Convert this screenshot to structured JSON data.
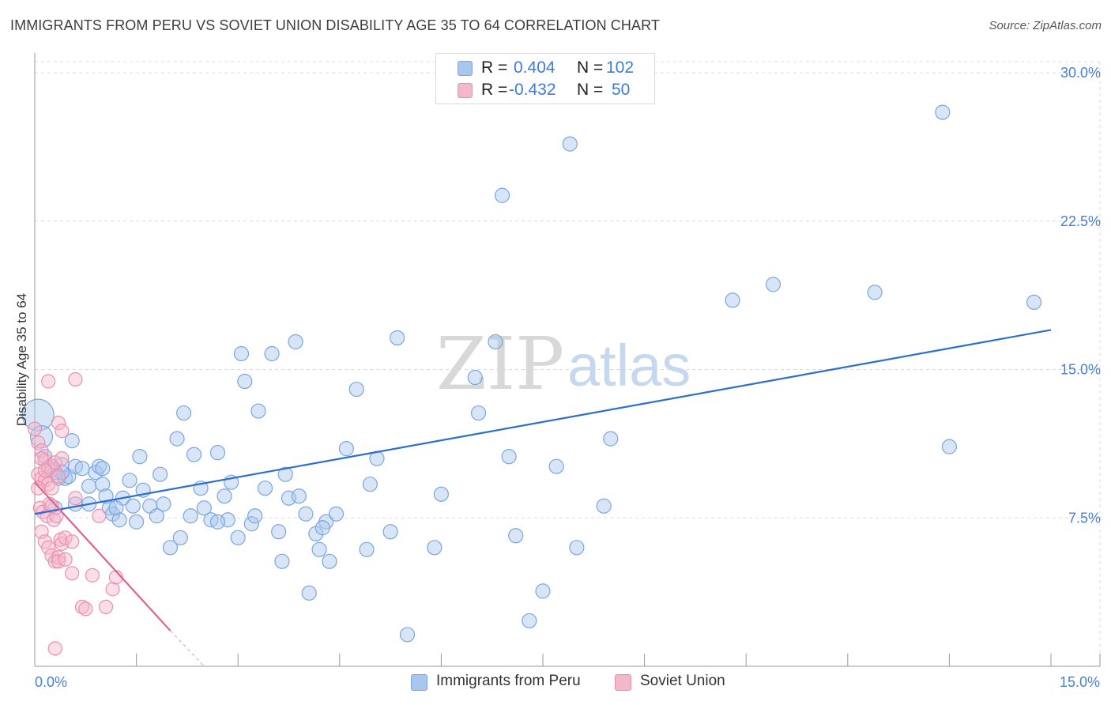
{
  "header": {
    "title": "IMMIGRANTS FROM PERU VS SOVIET UNION DISABILITY AGE 35 TO 64 CORRELATION CHART",
    "source": "Source: ZipAtlas.com"
  },
  "legend": {
    "rows": [
      {
        "r_label": "R =",
        "r_value": "0.404",
        "n_label": "N =",
        "n_value": "102"
      },
      {
        "r_label": "R =",
        "r_value": "-0.432",
        "n_label": "N =",
        "n_value": "50"
      }
    ]
  },
  "bottom_legend": {
    "series_a": "Immigrants from Peru",
    "series_b": "Soviet Union"
  },
  "watermark": {
    "zip": "ZIP",
    "atlas": "atlas"
  },
  "colors": {
    "peru_fill": "#a9c6ee",
    "peru_stroke": "#7aa6e0",
    "peru_line": "#2a6fd0",
    "soviet_fill": "#f5b8cb",
    "soviet_stroke": "#ec8fac",
    "soviet_line": "#e0608f",
    "tick_text": "#4a7fd0"
  },
  "chart_data": {
    "type": "scatter",
    "title": "IMMIGRANTS FROM PERU VS SOVIET UNION DISABILITY AGE 35 TO 64 CORRELATION CHART",
    "xlabel": "",
    "ylabel": "Disability Age 35 to 64",
    "xlim": [
      0,
      15
    ],
    "ylim": [
      0,
      31
    ],
    "x_tick_labels": [
      {
        "value": 0,
        "label": "0.0%"
      },
      {
        "value": 15,
        "label": "15.0%"
      }
    ],
    "y_tick_labels": [
      {
        "value": 7.5,
        "label": "7.5%"
      },
      {
        "value": 15,
        "label": "15.0%"
      },
      {
        "value": 22.5,
        "label": "22.5%"
      },
      {
        "value": 30,
        "label": "30.0%"
      }
    ],
    "series": [
      {
        "name": "Immigrants from Peru",
        "r": 0.404,
        "n": 102,
        "trend": {
          "x": [
            0,
            15
          ],
          "y": [
            7.7,
            17.0
          ]
        },
        "points": [
          [
            0.05,
            12.7
          ],
          [
            0.1,
            11.6
          ],
          [
            0.15,
            10.6
          ],
          [
            0.2,
            10.0
          ],
          [
            0.25,
            10.1
          ],
          [
            0.3,
            9.8
          ],
          [
            0.35,
            9.5
          ],
          [
            0.4,
            10.2
          ],
          [
            0.45,
            9.5
          ],
          [
            0.5,
            9.6
          ],
          [
            0.55,
            11.4
          ],
          [
            0.6,
            10.1
          ],
          [
            0.7,
            10.0
          ],
          [
            0.8,
            9.1
          ],
          [
            0.9,
            9.8
          ],
          [
            0.95,
            10.1
          ],
          [
            1.0,
            9.2
          ],
          [
            1.1,
            8.0
          ],
          [
            1.15,
            7.7
          ],
          [
            1.25,
            7.4
          ],
          [
            1.3,
            8.5
          ],
          [
            1.4,
            9.4
          ],
          [
            1.5,
            7.3
          ],
          [
            1.55,
            10.6
          ],
          [
            1.6,
            8.9
          ],
          [
            1.7,
            8.1
          ],
          [
            1.8,
            7.6
          ],
          [
            1.85,
            9.7
          ],
          [
            1.9,
            8.2
          ],
          [
            2.0,
            6.0
          ],
          [
            2.1,
            11.5
          ],
          [
            2.2,
            12.8
          ],
          [
            2.3,
            7.6
          ],
          [
            2.35,
            10.7
          ],
          [
            2.45,
            9.0
          ],
          [
            2.5,
            8.0
          ],
          [
            2.6,
            7.4
          ],
          [
            2.7,
            10.8
          ],
          [
            2.8,
            8.6
          ],
          [
            2.85,
            7.4
          ],
          [
            3.0,
            6.5
          ],
          [
            3.05,
            15.8
          ],
          [
            3.1,
            14.4
          ],
          [
            3.2,
            7.2
          ],
          [
            3.3,
            12.9
          ],
          [
            3.4,
            9.0
          ],
          [
            3.5,
            15.8
          ],
          [
            3.6,
            6.8
          ],
          [
            3.65,
            5.3
          ],
          [
            3.75,
            8.5
          ],
          [
            3.85,
            16.4
          ],
          [
            3.9,
            8.6
          ],
          [
            4.0,
            7.7
          ],
          [
            4.05,
            3.7
          ],
          [
            4.15,
            6.7
          ],
          [
            4.2,
            5.9
          ],
          [
            4.3,
            7.3
          ],
          [
            4.35,
            5.3
          ],
          [
            4.45,
            7.7
          ],
          [
            4.6,
            11.0
          ],
          [
            4.75,
            14.0
          ],
          [
            4.9,
            5.9
          ],
          [
            4.95,
            9.2
          ],
          [
            5.05,
            10.5
          ],
          [
            5.25,
            6.8
          ],
          [
            5.35,
            16.6
          ],
          [
            5.5,
            1.6
          ],
          [
            5.9,
            6.0
          ],
          [
            6.0,
            8.7
          ],
          [
            6.5,
            14.6
          ],
          [
            6.55,
            12.8
          ],
          [
            6.8,
            16.4
          ],
          [
            6.9,
            23.8
          ],
          [
            7.0,
            10.6
          ],
          [
            7.1,
            6.6
          ],
          [
            7.3,
            2.3
          ],
          [
            7.5,
            3.8
          ],
          [
            7.7,
            10.1
          ],
          [
            7.9,
            26.4
          ],
          [
            8.0,
            6.0
          ],
          [
            8.4,
            8.1
          ],
          [
            8.5,
            11.5
          ],
          [
            10.3,
            18.5
          ],
          [
            10.9,
            19.3
          ],
          [
            12.4,
            18.9
          ],
          [
            13.4,
            28.0
          ],
          [
            13.5,
            11.1
          ],
          [
            14.75,
            18.4
          ],
          [
            0.6,
            8.2
          ],
          [
            1.2,
            8.0
          ],
          [
            2.7,
            7.3
          ],
          [
            3.7,
            9.7
          ],
          [
            1.0,
            10.0
          ],
          [
            0.8,
            8.2
          ],
          [
            1.05,
            8.6
          ],
          [
            2.9,
            9.3
          ],
          [
            4.25,
            7.0
          ],
          [
            0.4,
            9.8
          ],
          [
            1.45,
            8.1
          ],
          [
            2.15,
            6.5
          ],
          [
            3.25,
            7.6
          ],
          [
            0.3,
            8.0
          ]
        ]
      },
      {
        "name": "Soviet Union",
        "r": -0.432,
        "n": 50,
        "trend": {
          "x": [
            0,
            2.0
          ],
          "y": [
            9.3,
            1.8
          ]
        },
        "trend_extension": {
          "x": [
            2.0,
            2.5
          ],
          "y": [
            1.8,
            0.0
          ]
        },
        "points": [
          [
            0.0,
            12.0
          ],
          [
            0.05,
            11.3
          ],
          [
            0.1,
            10.9
          ],
          [
            0.15,
            10.4
          ],
          [
            0.2,
            10.1
          ],
          [
            0.25,
            9.9
          ],
          [
            0.05,
            9.7
          ],
          [
            0.1,
            9.5
          ],
          [
            0.15,
            9.4
          ],
          [
            0.2,
            9.2
          ],
          [
            0.25,
            9.0
          ],
          [
            0.3,
            10.3
          ],
          [
            0.35,
            9.6
          ],
          [
            0.08,
            8.0
          ],
          [
            0.12,
            7.8
          ],
          [
            0.18,
            7.6
          ],
          [
            0.22,
            8.2
          ],
          [
            0.28,
            7.4
          ],
          [
            0.32,
            7.6
          ],
          [
            0.38,
            6.4
          ],
          [
            0.1,
            6.8
          ],
          [
            0.15,
            6.3
          ],
          [
            0.2,
            6.0
          ],
          [
            0.25,
            5.6
          ],
          [
            0.3,
            5.3
          ],
          [
            0.35,
            5.5
          ],
          [
            0.4,
            6.2
          ],
          [
            0.45,
            6.5
          ],
          [
            0.55,
            6.3
          ],
          [
            0.35,
            5.3
          ],
          [
            0.45,
            5.4
          ],
          [
            0.55,
            4.7
          ],
          [
            0.6,
            8.5
          ],
          [
            0.7,
            3.0
          ],
          [
            0.75,
            2.9
          ],
          [
            0.85,
            4.6
          ],
          [
            0.95,
            7.6
          ],
          [
            1.05,
            3.0
          ],
          [
            1.15,
            3.9
          ],
          [
            1.2,
            4.5
          ],
          [
            0.2,
            14.4
          ],
          [
            0.6,
            14.5
          ],
          [
            0.35,
            12.3
          ],
          [
            0.4,
            11.9
          ],
          [
            0.3,
            0.9
          ],
          [
            0.1,
            10.5
          ],
          [
            0.05,
            9.0
          ],
          [
            0.25,
            8.1
          ],
          [
            0.15,
            9.9
          ],
          [
            0.4,
            10.5
          ]
        ]
      }
    ]
  }
}
